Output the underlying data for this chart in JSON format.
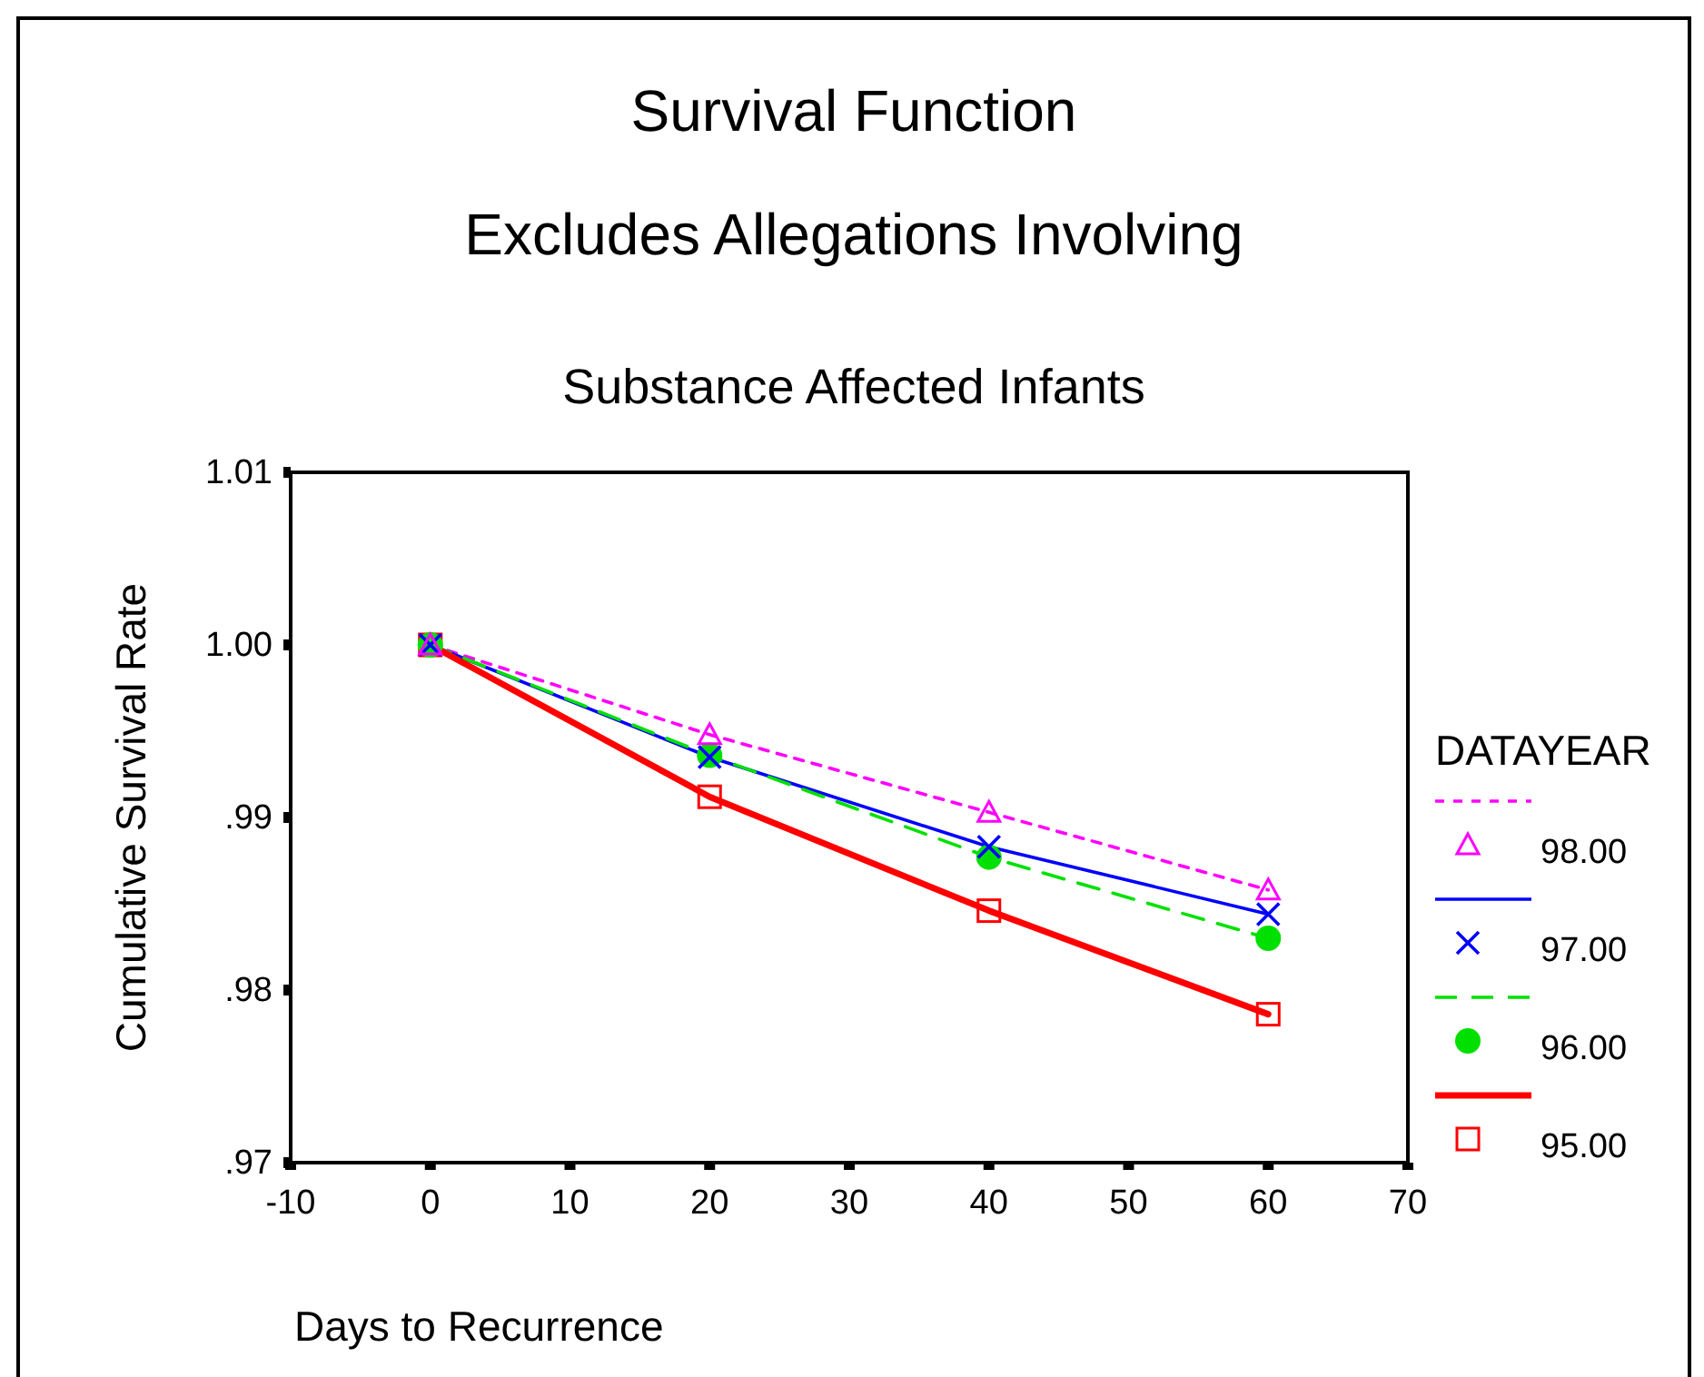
{
  "chart_data": {
    "type": "line",
    "title": "Survival Function\nExcludes Allegations Involving",
    "subtitle": "Substance Affected Infants",
    "xlabel": "Days to Recurrence",
    "ylabel": "Cumulative Survival Rate",
    "legend_title": "DATAYEAR",
    "legend": "right",
    "grid": false,
    "x": [
      0,
      20,
      40,
      60
    ],
    "xlim": [
      -10,
      70
    ],
    "xticks": [
      -10,
      0,
      10,
      20,
      30,
      40,
      50,
      60,
      70
    ],
    "ylim": [
      0.97,
      1.01
    ],
    "yticks": [
      {
        "value": 0.97,
        "label": ".97"
      },
      {
        "value": 0.98,
        "label": ".98"
      },
      {
        "value": 0.99,
        "label": ".99"
      },
      {
        "value": 1.0,
        "label": "1.00"
      },
      {
        "value": 1.01,
        "label": "1.01"
      }
    ],
    "series": [
      {
        "name": "98.00",
        "color": "#ff00ff",
        "values": [
          1.0,
          0.9948,
          0.9903,
          0.9858
        ],
        "marker": "triangle",
        "line_style": "dotted"
      },
      {
        "name": "97.00",
        "color": "#0000ff",
        "values": [
          1.0,
          0.9935,
          0.9883,
          0.9844
        ],
        "marker": "cross",
        "line_style": "solid"
      },
      {
        "name": "96.00",
        "color": "#00e000",
        "values": [
          1.0,
          0.9936,
          0.9877,
          0.983
        ],
        "marker": "circle",
        "line_style": "dashed"
      },
      {
        "name": "95.00",
        "color": "#ff0000",
        "values": [
          1.0,
          0.9912,
          0.9846,
          0.9786
        ],
        "marker": "square",
        "line_style": "solid"
      }
    ]
  }
}
